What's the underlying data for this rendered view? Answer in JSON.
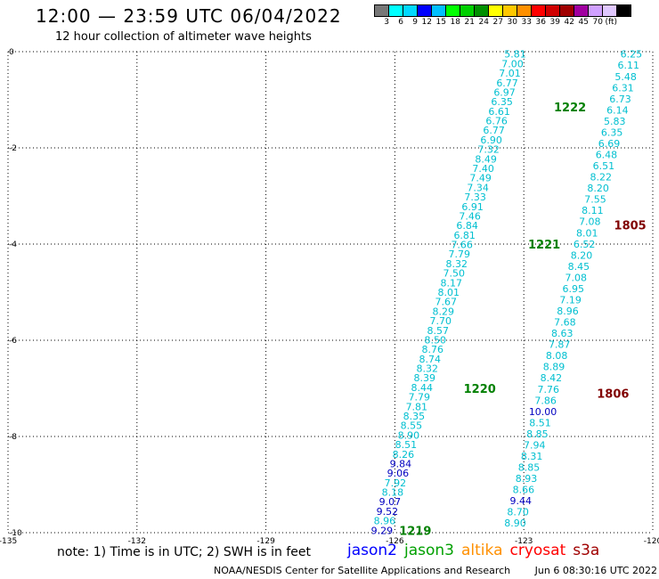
{
  "header": {
    "title": "12:00 — 23:59 UTC 06/04/2022",
    "subtitle": "12 hour collection of altimeter wave heights"
  },
  "color_scale": {
    "colors": [
      "#777777",
      "#00ffff",
      "#00d8ff",
      "#0000ff",
      "#00bfff",
      "#00ff00",
      "#00d000",
      "#009000",
      "#ffff00",
      "#ffc800",
      "#ff9000",
      "#ff0000",
      "#d00000",
      "#a00000",
      "#a000a0",
      "#d0a0ff",
      "#e0c8ff",
      "#000000"
    ],
    "labels": [
      "3",
      "6",
      "9",
      "12",
      "15",
      "18",
      "21",
      "24",
      "27",
      "30",
      "33",
      "36",
      "39",
      "42",
      "45",
      "70",
      "(ft)"
    ]
  },
  "chart_data": {
    "type": "scatter",
    "title": "12:00 — 23:59 UTC 06/04/2022",
    "xlim": [
      -135,
      -120
    ],
    "ylim": [
      -10,
      0
    ],
    "x_ticks": [
      "-135",
      "-132",
      "-129",
      "-126",
      "-123",
      "-120"
    ],
    "y_ticks": [
      "0",
      "-2",
      "-4",
      "-6",
      "-8",
      "-10"
    ],
    "series": [
      {
        "name": "jason3",
        "color": "#00bfd0",
        "start": [
          -123.2,
          -0.05
        ],
        "end": [
          -126.3,
          -9.95
        ],
        "values": [
          "5.81",
          "7.00",
          "7.01",
          "6.77",
          "6.97",
          "6.35",
          "6.61",
          "6.76",
          "6.77",
          "6.90",
          "7.32",
          "8.49",
          "7.40",
          "7.49",
          "7.34",
          "7.33",
          "6.91",
          "7.46",
          "6.84",
          "6.81",
          "7.66",
          "7.79",
          "8.32",
          "7.50",
          "8.17",
          "8.01",
          "7.67",
          "8.29",
          "7.70",
          "8.57",
          "8.50",
          "8.76",
          "8.74",
          "8.32",
          "8.39",
          "8.44",
          "7.79",
          "7.81",
          "8.35",
          "8.55",
          "8.90",
          "8.51",
          "8.26",
          "9.84",
          "9.06",
          "7.92",
          "8.18",
          "9.07",
          "9.52",
          "8.96",
          "9.29"
        ],
        "dark": [
          "9.84",
          "9.06",
          "9.07",
          "9.52",
          "9.29"
        ]
      },
      {
        "name": "jason3",
        "color": "#00bfd0",
        "start": [
          -120.5,
          -0.05
        ],
        "end": [
          -123.2,
          -9.8
        ],
        "values": [
          "6.25",
          "6.11",
          "5.48",
          "6.31",
          "6.73",
          "6.14",
          "5.83",
          "6.35",
          "6.69",
          "6.48",
          "6.51",
          "8.22",
          "8.20",
          "7.55",
          "8.11",
          "7.08",
          "8.01",
          "6.52",
          "8.20",
          "8.45",
          "7.08",
          "6.95",
          "7.19",
          "8.96",
          "7.68",
          "8.63",
          "7.87",
          "8.08",
          "8.89",
          "8.42",
          "7.76",
          "7.86",
          "10.00",
          "8.51",
          "8.85",
          "7.94",
          "8.31",
          "8.85",
          "8.93",
          "8.66",
          "9.44",
          "8.70",
          "8.90"
        ],
        "dark": [
          "10.00",
          "9.44"
        ]
      }
    ],
    "pass_labels": [
      {
        "text": "1222",
        "x": -122.3,
        "y": -1.15,
        "color": "#008000"
      },
      {
        "text": "1221",
        "x": -122.9,
        "y": -4.0,
        "color": "#008000"
      },
      {
        "text": "1220",
        "x": -124.4,
        "y": -7.0,
        "color": "#008000"
      },
      {
        "text": "1219",
        "x": -125.9,
        "y": -9.95,
        "color": "#008000"
      },
      {
        "text": "1805",
        "x": -120.9,
        "y": -3.6,
        "color": "#800000"
      },
      {
        "text": "1806",
        "x": -121.3,
        "y": -7.1,
        "color": "#800000"
      },
      {
        "text": "18",
        "x": -119.6,
        "y": -0.05,
        "color": "#800000"
      }
    ]
  },
  "note": "note:  1) Time is in UTC;  2) SWH is in feet",
  "missions": [
    {
      "name": "jason2",
      "color": "#0000ff"
    },
    {
      "name": "jason3",
      "color": "#00a000"
    },
    {
      "name": "altika",
      "color": "#ff9000"
    },
    {
      "name": "cryosat",
      "color": "#ff0000"
    },
    {
      "name": "s3a",
      "color": "#a00000"
    }
  ],
  "footer": {
    "source": "NOAA/NESDIS Center for Satellite Applications and Research",
    "timestamp": "Jun  6 08:30:16 UTC 2022"
  }
}
